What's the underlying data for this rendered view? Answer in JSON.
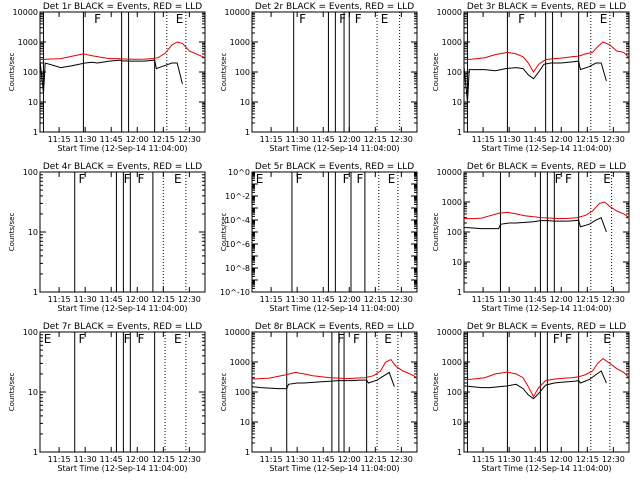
{
  "figure": {
    "title_suffix": "BLACK = Events, RED = LLD",
    "ylabel": "Counts/sec",
    "xlabel": "Start Time (12-Sep-14 11:04:00)",
    "x_ticks": [
      "11:15",
      "11:30",
      "11:45",
      "12:00",
      "12:15",
      "12:30"
    ],
    "x_range_minutes_after_start": [
      0,
      95
    ],
    "x_tick_minutes_after_start": [
      11,
      26,
      41,
      56,
      71,
      86
    ],
    "y_tick_labels_log": [
      "1",
      "10",
      "100",
      "1000",
      "10000"
    ],
    "y_tick_labels_small": [
      "10^-10",
      "10^-8",
      "10^-6",
      "10^-4",
      "10^-2",
      "10^0"
    ],
    "colors": {
      "events": "#000000",
      "lld": "#e00000",
      "axes": "#000000",
      "background": "#ffffff"
    }
  },
  "chart_data": [
    {
      "type": "line",
      "title": "Det 1r BLACK = Events, RED = LLD",
      "yscale": "log",
      "ylim": [
        1,
        10000
      ],
      "flags": [
        {
          "label": "F",
          "x": 30
        },
        {
          "label": "E",
          "x": 77
        }
      ],
      "solid_lines": [
        2,
        25,
        47,
        51,
        66
      ],
      "dotted_lines": [
        73,
        84
      ],
      "series": [
        {
          "name": "Events",
          "color": "#000000",
          "x": [
            0,
            2,
            3,
            12,
            18,
            26,
            30,
            33,
            40,
            46,
            47,
            52,
            56,
            60,
            63,
            66,
            67,
            70,
            76,
            79,
            82
          ],
          "values": [
            240,
            20,
            200,
            140,
            160,
            200,
            210,
            200,
            230,
            250,
            235,
            230,
            230,
            230,
            240,
            250,
            130,
            150,
            200,
            200,
            40
          ]
        },
        {
          "name": "LLD",
          "color": "#e00000",
          "x": [
            0,
            5,
            12,
            18,
            25,
            30,
            35,
            40,
            45,
            50,
            55,
            60,
            65,
            68,
            72,
            76,
            79,
            82,
            86,
            90,
            95
          ],
          "values": [
            260,
            270,
            280,
            330,
            400,
            350,
            310,
            280,
            280,
            270,
            265,
            270,
            280,
            300,
            420,
            800,
            1000,
            900,
            500,
            400,
            300
          ]
        }
      ]
    },
    {
      "type": "line",
      "title": "Det 2r BLACK = Events, RED = LLD",
      "yscale": "log",
      "ylim": [
        1,
        10000
      ],
      "flags": [
        {
          "label": "F",
          "x": 26
        },
        {
          "label": "F",
          "x": 49
        },
        {
          "label": "F",
          "x": 58
        },
        {
          "label": "E",
          "x": 73
        }
      ],
      "solid_lines": [
        24,
        44,
        48,
        53,
        56
      ],
      "dotted_lines": [
        72,
        85
      ],
      "series": []
    },
    {
      "type": "line",
      "title": "Det 3r BLACK = Events, RED = LLD",
      "yscale": "log",
      "ylim": [
        1,
        10000
      ],
      "flags": [
        {
          "label": "F",
          "x": 30
        },
        {
          "label": "E",
          "x": 77
        }
      ],
      "solid_lines": [
        2,
        25,
        47,
        51,
        66
      ],
      "dotted_lines": [
        73,
        84
      ],
      "series": [
        {
          "name": "Events",
          "color": "#000000",
          "x": [
            0,
            2,
            3,
            12,
            18,
            24,
            30,
            34,
            37,
            40,
            43,
            46,
            50,
            56,
            60,
            63,
            66,
            67,
            72,
            76,
            79,
            82
          ],
          "values": [
            150,
            10,
            120,
            120,
            110,
            130,
            140,
            130,
            80,
            60,
            100,
            180,
            200,
            200,
            210,
            220,
            230,
            120,
            150,
            200,
            200,
            50
          ]
        },
        {
          "name": "LLD",
          "color": "#e00000",
          "x": [
            0,
            5,
            12,
            18,
            25,
            30,
            34,
            37,
            40,
            43,
            47,
            52,
            58,
            62,
            66,
            70,
            74,
            77,
            80,
            84,
            88,
            92,
            95
          ],
          "values": [
            260,
            270,
            300,
            380,
            450,
            400,
            320,
            200,
            100,
            180,
            260,
            280,
            300,
            320,
            340,
            400,
            450,
            700,
            1000,
            800,
            500,
            450,
            300
          ]
        }
      ]
    },
    {
      "type": "line",
      "title": "Det 4r BLACK = Events, RED = LLD",
      "yscale": "log",
      "ylim": [
        1,
        100
      ],
      "flags": [
        {
          "label": "F",
          "x": 21
        },
        {
          "label": "F",
          "x": 47
        },
        {
          "label": "F",
          "x": 55
        },
        {
          "label": "E",
          "x": 76
        }
      ],
      "solid_lines": [
        20,
        44,
        48,
        52,
        65
      ],
      "dotted_lines": [
        71,
        84
      ],
      "series": []
    },
    {
      "type": "line",
      "title": "Det 5r BLACK = Events, RED = LLD",
      "yscale": "log",
      "ylim": [
        1e-10,
        1
      ],
      "flags": [
        {
          "label": "E",
          "x": 1
        },
        {
          "label": "F",
          "x": 24
        },
        {
          "label": "F",
          "x": 51
        },
        {
          "label": "F",
          "x": 59
        },
        {
          "label": "E",
          "x": 77
        }
      ],
      "solid_lines": [
        23,
        44,
        48,
        57,
        65
      ],
      "dotted_lines": [
        73,
        84
      ],
      "series": []
    },
    {
      "type": "line",
      "title": "Det 6r BLACK = Events, RED = LLD",
      "yscale": "log",
      "ylim": [
        1,
        10000
      ],
      "flags": [
        {
          "label": "F",
          "x": 51
        },
        {
          "label": "F",
          "x": 57
        },
        {
          "label": "E",
          "x": 79
        }
      ],
      "solid_lines": [
        21,
        44,
        48,
        52,
        66
      ],
      "dotted_lines": [
        73,
        85
      ],
      "series": [
        {
          "name": "Events",
          "color": "#000000",
          "x": [
            0,
            2,
            10,
            20,
            21,
            26,
            30,
            36,
            40,
            44,
            48,
            52,
            56,
            60,
            64,
            66,
            67,
            72,
            76,
            79,
            82
          ],
          "values": [
            140,
            140,
            130,
            130,
            180,
            200,
            200,
            210,
            220,
            240,
            240,
            230,
            230,
            230,
            240,
            250,
            150,
            180,
            250,
            300,
            100
          ]
        },
        {
          "name": "LLD",
          "color": "#e00000",
          "x": [
            0,
            5,
            10,
            15,
            20,
            25,
            30,
            35,
            40,
            45,
            50,
            55,
            60,
            65,
            70,
            74,
            78,
            81,
            84,
            88,
            92,
            95
          ],
          "values": [
            280,
            280,
            290,
            350,
            420,
            450,
            400,
            350,
            320,
            300,
            290,
            280,
            285,
            300,
            360,
            500,
            900,
            1000,
            700,
            500,
            400,
            300
          ]
        }
      ]
    },
    {
      "type": "line",
      "title": "Det 7r BLACK = Events, RED = LLD",
      "yscale": "log",
      "ylim": [
        1,
        100
      ],
      "flags": [
        {
          "label": "E",
          "x": 1
        },
        {
          "label": "F",
          "x": 21
        },
        {
          "label": "F",
          "x": 47
        },
        {
          "label": "F",
          "x": 55
        },
        {
          "label": "E",
          "x": 76
        }
      ],
      "solid_lines": [
        20,
        44,
        48,
        52,
        66
      ],
      "dotted_lines": [
        72,
        84
      ],
      "series": []
    },
    {
      "type": "line",
      "title": "Det 8r BLACK = Events, RED = LLD",
      "yscale": "log",
      "ylim": [
        1,
        10000
      ],
      "flags": [
        {
          "label": "F",
          "x": 48
        },
        {
          "label": "F",
          "x": 57
        },
        {
          "label": "E",
          "x": 75
        }
      ],
      "solid_lines": [
        20,
        46,
        50,
        53,
        66
      ],
      "dotted_lines": [
        72,
        84
      ],
      "series": [
        {
          "name": "Events",
          "color": "#000000",
          "x": [
            0,
            5,
            15,
            20,
            21,
            26,
            30,
            36,
            40,
            46,
            50,
            54,
            58,
            62,
            66,
            67,
            72,
            76,
            79,
            82
          ],
          "values": [
            150,
            140,
            130,
            130,
            180,
            200,
            200,
            210,
            220,
            230,
            240,
            240,
            240,
            250,
            250,
            200,
            250,
            350,
            450,
            150
          ]
        },
        {
          "name": "LLD",
          "color": "#e00000",
          "x": [
            0,
            5,
            10,
            15,
            20,
            25,
            30,
            35,
            40,
            45,
            50,
            55,
            60,
            65,
            70,
            74,
            77,
            80,
            83,
            87,
            91,
            95
          ],
          "values": [
            270,
            280,
            290,
            330,
            380,
            450,
            400,
            350,
            320,
            300,
            290,
            280,
            290,
            300,
            350,
            500,
            1000,
            1200,
            700,
            500,
            400,
            300
          ]
        }
      ]
    },
    {
      "type": "line",
      "title": "Det 9r BLACK = Events, RED = LLD",
      "yscale": "log",
      "ylim": [
        1,
        10000
      ],
      "flags": [
        {
          "label": "F",
          "x": 50
        },
        {
          "label": "F",
          "x": 57
        },
        {
          "label": "E",
          "x": 79
        }
      ],
      "solid_lines": [
        2,
        25,
        44,
        48,
        66
      ],
      "dotted_lines": [
        73,
        84
      ],
      "series": [
        {
          "name": "Events",
          "color": "#000000",
          "x": [
            0,
            5,
            10,
            15,
            20,
            25,
            30,
            34,
            37,
            40,
            43,
            47,
            52,
            56,
            60,
            64,
            66,
            67,
            72,
            76,
            79,
            82
          ],
          "values": [
            160,
            150,
            140,
            140,
            150,
            160,
            180,
            130,
            80,
            60,
            90,
            170,
            200,
            210,
            220,
            230,
            240,
            200,
            260,
            380,
            500,
            200
          ]
        },
        {
          "name": "LLD",
          "color": "#e00000",
          "x": [
            0,
            5,
            12,
            18,
            25,
            30,
            34,
            37,
            40,
            43,
            47,
            52,
            58,
            62,
            66,
            70,
            74,
            77,
            80,
            84,
            88,
            92,
            95
          ],
          "values": [
            260,
            270,
            300,
            400,
            460,
            400,
            300,
            150,
            70,
            140,
            240,
            270,
            290,
            300,
            320,
            380,
            500,
            900,
            1300,
            900,
            600,
            450,
            300
          ]
        }
      ]
    }
  ]
}
